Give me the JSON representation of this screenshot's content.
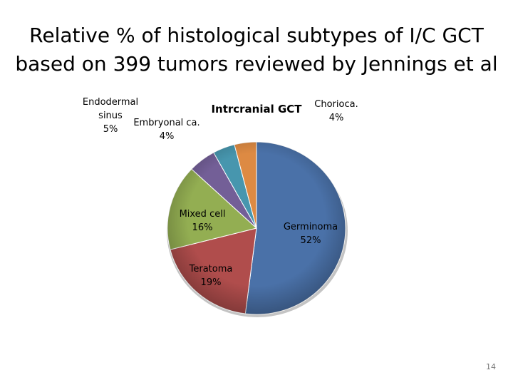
{
  "slide": {
    "title_line1": "Relative % of histological subtypes of I/C GCT",
    "title_line2": "based on 399 tumors reviewed by Jennings et al",
    "page_number": "14"
  },
  "chart_data": {
    "type": "pie",
    "title": "Intrcranial GCT",
    "slices": [
      {
        "label_lines": [
          "Germinoma",
          "52%"
        ],
        "value": 52,
        "color": "#4A71A8"
      },
      {
        "label_lines": [
          "Teratoma",
          "19%"
        ],
        "value": 19,
        "color": "#B04D4C"
      },
      {
        "label_lines": [
          "Mixed  cell",
          "16%"
        ],
        "value": 16,
        "color": "#93AE52"
      },
      {
        "label_lines": [
          "Endodermal",
          "sinus",
          "5%"
        ],
        "value": 5,
        "color": "#735F97"
      },
      {
        "label_lines": [
          "Embryonal ca.",
          "4%"
        ],
        "value": 4,
        "color": "#4796AE"
      },
      {
        "label_lines": [
          "Chorioca.",
          "4%"
        ],
        "value": 4,
        "color": "#DD8A43"
      }
    ],
    "legend": false
  }
}
